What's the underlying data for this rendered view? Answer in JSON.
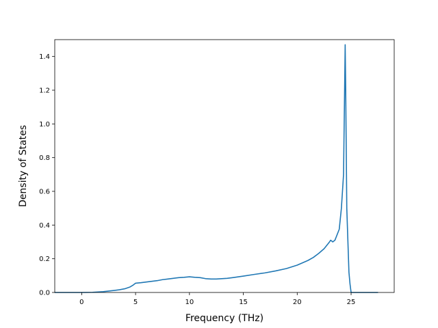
{
  "chart_data": {
    "type": "line",
    "title": "",
    "xlabel": "Frequency (THz)",
    "ylabel": "Density of States",
    "xlim": [
      -2.5,
      29
    ],
    "ylim": [
      0.0,
      1.5
    ],
    "xticks": [
      0,
      5,
      10,
      15,
      20,
      25
    ],
    "yticks": [
      0.0,
      0.2,
      0.4,
      0.6,
      0.8,
      1.0,
      1.2,
      1.4
    ],
    "xtick_labels": [
      "0",
      "5",
      "10",
      "15",
      "20",
      "25"
    ],
    "ytick_labels": [
      "0.0",
      "0.2",
      "0.4",
      "0.6",
      "0.8",
      "1.0",
      "1.2",
      "1.4"
    ],
    "grid": false,
    "series": [
      {
        "color": "#1f77b4",
        "x": [
          -2.5,
          -1.0,
          0.0,
          1.0,
          2.0,
          3.0,
          3.5,
          4.0,
          4.5,
          4.8,
          5.0,
          5.5,
          6.0,
          6.5,
          7.0,
          7.5,
          8.0,
          8.5,
          9.0,
          9.5,
          10.0,
          10.5,
          11.0,
          11.5,
          12.0,
          12.5,
          13.0,
          13.5,
          14.0,
          15.0,
          16.0,
          17.0,
          18.0,
          19.0,
          20.0,
          21.0,
          21.5,
          22.0,
          22.5,
          23.0,
          23.1,
          23.3,
          23.5,
          23.9,
          24.1,
          24.3,
          24.45,
          24.5,
          24.6,
          24.8,
          24.9,
          25.0,
          26.0,
          27.5
        ],
        "y": [
          0.0,
          0.0,
          0.0,
          0.001,
          0.005,
          0.012,
          0.016,
          0.022,
          0.033,
          0.045,
          0.055,
          0.058,
          0.062,
          0.066,
          0.07,
          0.076,
          0.08,
          0.084,
          0.088,
          0.09,
          0.093,
          0.09,
          0.088,
          0.082,
          0.08,
          0.08,
          0.082,
          0.084,
          0.088,
          0.097,
          0.107,
          0.116,
          0.128,
          0.142,
          0.162,
          0.19,
          0.208,
          0.232,
          0.26,
          0.3,
          0.31,
          0.3,
          0.31,
          0.375,
          0.5,
          0.7,
          1.47,
          1.2,
          0.5,
          0.12,
          0.05,
          0.0,
          0.0,
          0.0
        ]
      }
    ]
  }
}
